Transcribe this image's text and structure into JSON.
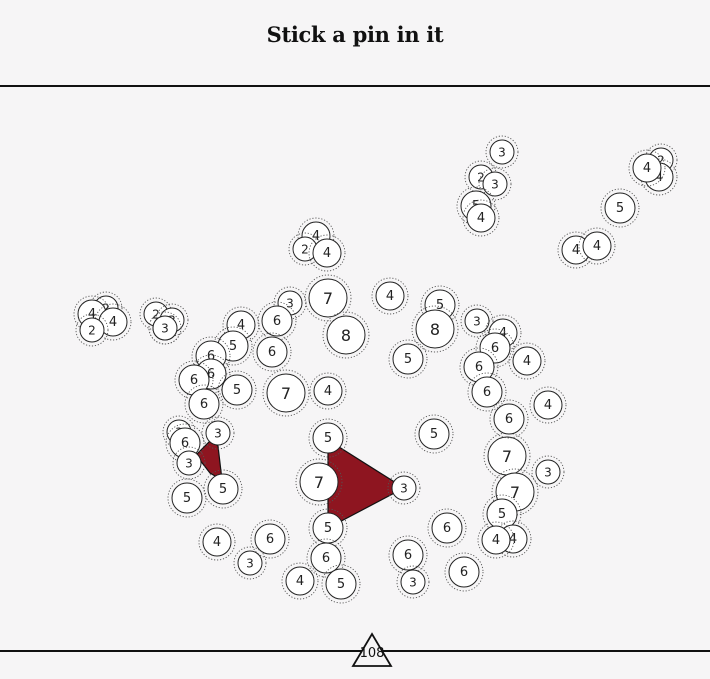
{
  "header": {
    "title": "Stick a pin in it"
  },
  "footer": {
    "counter": "108"
  },
  "colors": {
    "background": "#f6f5f6",
    "line": "#111111",
    "shape_fill": "#8e1520",
    "pin_fill": "#ffffff"
  },
  "pins": [
    {
      "label": "3"
    },
    {
      "label": "2"
    },
    {
      "label": "3"
    },
    {
      "label": "5"
    },
    {
      "label": "4"
    },
    {
      "label": "2"
    },
    {
      "label": "4"
    },
    {
      "label": "4"
    },
    {
      "label": "5"
    },
    {
      "label": "4"
    },
    {
      "label": "4"
    },
    {
      "label": "4"
    },
    {
      "label": "2"
    },
    {
      "label": "4"
    },
    {
      "label": "7"
    },
    {
      "label": "3"
    },
    {
      "label": "6"
    },
    {
      "label": "8"
    },
    {
      "label": "4"
    },
    {
      "label": "5"
    },
    {
      "label": "8"
    },
    {
      "label": "3"
    },
    {
      "label": "4"
    },
    {
      "label": "6"
    },
    {
      "label": "4"
    },
    {
      "label": "2"
    },
    {
      "label": "4"
    },
    {
      "label": "2"
    },
    {
      "label": "4"
    },
    {
      "label": "2"
    },
    {
      "label": "2"
    },
    {
      "label": "3"
    },
    {
      "label": "3"
    },
    {
      "label": "4"
    },
    {
      "label": "5"
    },
    {
      "label": "6"
    },
    {
      "label": "6"
    },
    {
      "label": "6"
    },
    {
      "label": "6"
    },
    {
      "label": "5"
    },
    {
      "label": "6"
    },
    {
      "label": "7"
    },
    {
      "label": "4"
    },
    {
      "label": "5"
    },
    {
      "label": "6"
    },
    {
      "label": "6"
    },
    {
      "label": "4"
    },
    {
      "label": "3"
    },
    {
      "label": "6"
    },
    {
      "label": "3"
    },
    {
      "label": "3"
    },
    {
      "label": "5"
    },
    {
      "label": "5"
    },
    {
      "label": "5"
    },
    {
      "label": "7"
    },
    {
      "label": "5"
    },
    {
      "label": "3"
    },
    {
      "label": "5"
    },
    {
      "label": "7"
    },
    {
      "label": "3"
    },
    {
      "label": "7"
    },
    {
      "label": "5"
    },
    {
      "label": "4"
    },
    {
      "label": "4"
    },
    {
      "label": "6"
    },
    {
      "label": "6"
    },
    {
      "label": "6"
    },
    {
      "label": "3"
    },
    {
      "label": "6"
    },
    {
      "label": "4"
    },
    {
      "label": "6"
    },
    {
      "label": "3"
    },
    {
      "label": "6"
    },
    {
      "label": "4"
    },
    {
      "label": "5"
    }
  ]
}
